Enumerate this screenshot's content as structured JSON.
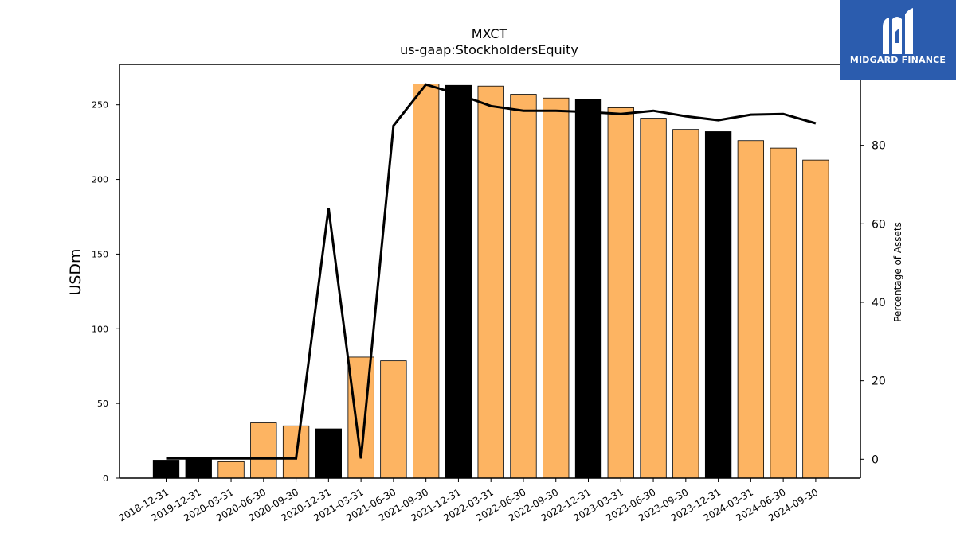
{
  "chart_data": {
    "type": "bar",
    "title": "MXCT",
    "subtitle": "us-gaap:StockholdersEquity",
    "ylabel": "USDm",
    "y2label": "Percentage of Assets",
    "ylim": [
      0,
      277
    ],
    "y2lim": [
      -4.8,
      100.6
    ],
    "yticks": [
      0,
      50,
      100,
      150,
      200,
      250
    ],
    "y2ticks": [
      0,
      20,
      40,
      60,
      80
    ],
    "categories": [
      "2018-12-31",
      "2019-12-31",
      "2020-03-31",
      "2020-06-30",
      "2020-09-30",
      "2020-12-31",
      "2021-03-31",
      "2021-06-30",
      "2021-09-30",
      "2021-12-31",
      "2022-03-31",
      "2022-06-30",
      "2022-09-30",
      "2022-12-31",
      "2023-03-31",
      "2023-06-30",
      "2023-09-30",
      "2023-12-31",
      "2024-03-31",
      "2024-06-30",
      "2024-09-30"
    ],
    "series": [
      {
        "kind": "bar",
        "values": [
          12,
          13.5,
          11,
          37,
          35,
          33,
          81,
          78.5,
          264,
          263,
          262.5,
          257,
          254.5,
          253.5,
          248,
          241,
          233.5,
          232,
          226,
          221,
          213
        ],
        "annual_flags": [
          true,
          true,
          false,
          false,
          false,
          true,
          false,
          false,
          false,
          true,
          false,
          false,
          false,
          true,
          false,
          false,
          false,
          true,
          false,
          false,
          false
        ],
        "colors": {
          "annual": "#000000",
          "quarterly": "#fdb462"
        }
      },
      {
        "kind": "line",
        "axis": "right",
        "values": [
          0.2,
          0.2,
          0.2,
          0.2,
          0.2,
          64,
          0.2,
          85,
          95.5,
          93,
          90,
          88.8,
          88.8,
          88.5,
          88,
          88.8,
          87.4,
          86.4,
          87.8,
          88,
          85.6
        ],
        "color": "#000000"
      }
    ]
  },
  "logo": {
    "text": "MIDGARD FINANCE",
    "icon": "midgard-logo-icon"
  }
}
